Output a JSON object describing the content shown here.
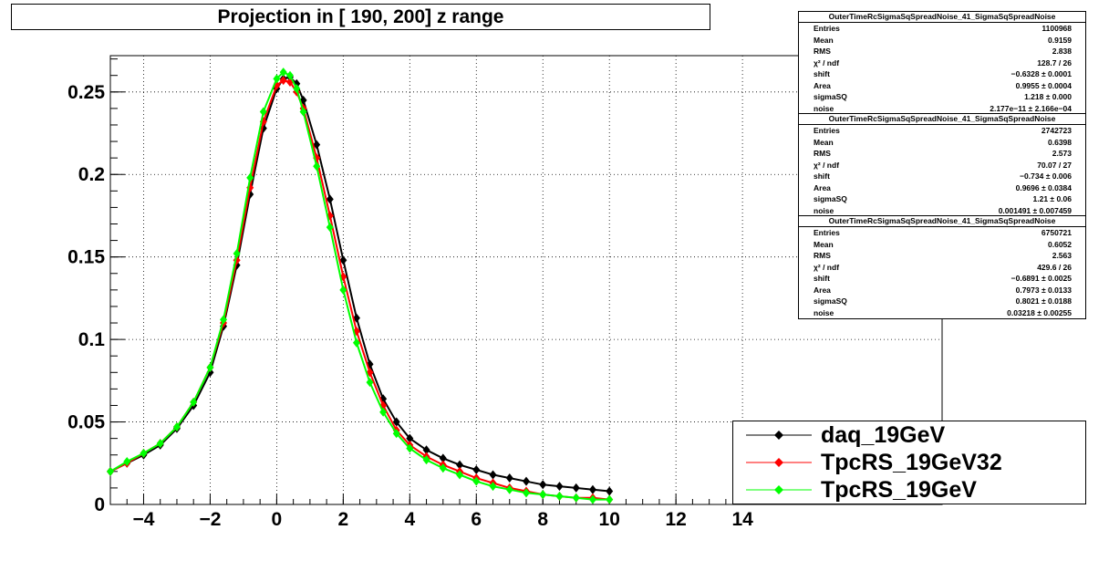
{
  "chart_data": {
    "type": "scatter",
    "title": "Projection in [ 190, 200] z range",
    "xlim": [
      -5,
      20
    ],
    "ylim": [
      0,
      0.272
    ],
    "x_ticks": [
      -4,
      -2,
      0,
      2,
      4,
      6,
      8,
      10,
      12,
      14
    ],
    "x_tick_labels": [
      "−4",
      "−2",
      "0",
      "2",
      "4",
      "6",
      "8",
      "10",
      "12",
      "14"
    ],
    "y_ticks": [
      0,
      0.05,
      0.1,
      0.15,
      0.2,
      0.25
    ],
    "y_tick_labels": [
      "0",
      "0.05",
      "0.1",
      "0.15",
      "0.2",
      "0.25"
    ],
    "grid": true,
    "legend_position": "bottom-right",
    "series": [
      {
        "name": "daq_19GeV",
        "color": "#000000",
        "points": [
          [
            -5,
            0.02
          ],
          [
            -4.5,
            0.025
          ],
          [
            -4,
            0.03
          ],
          [
            -3.5,
            0.036
          ],
          [
            -3,
            0.046
          ],
          [
            -2.5,
            0.06
          ],
          [
            -2,
            0.08
          ],
          [
            -1.6,
            0.108
          ],
          [
            -1.2,
            0.145
          ],
          [
            -0.8,
            0.188
          ],
          [
            -0.4,
            0.228
          ],
          [
            0,
            0.252
          ],
          [
            0.2,
            0.258
          ],
          [
            0.4,
            0.259
          ],
          [
            0.6,
            0.255
          ],
          [
            0.8,
            0.245
          ],
          [
            1.2,
            0.218
          ],
          [
            1.6,
            0.185
          ],
          [
            2,
            0.148
          ],
          [
            2.4,
            0.113
          ],
          [
            2.8,
            0.085
          ],
          [
            3.2,
            0.064
          ],
          [
            3.6,
            0.05
          ],
          [
            4,
            0.04
          ],
          [
            4.5,
            0.033
          ],
          [
            5,
            0.028
          ],
          [
            5.5,
            0.024
          ],
          [
            6,
            0.021
          ],
          [
            6.5,
            0.018
          ],
          [
            7,
            0.016
          ],
          [
            7.5,
            0.014
          ],
          [
            8,
            0.012
          ],
          [
            8.5,
            0.011
          ],
          [
            9,
            0.01
          ],
          [
            9.5,
            0.009
          ],
          [
            10,
            0.008
          ]
        ],
        "fit": {
          "shift": -0.6328,
          "sigmaSQ": 1.218,
          "area": 0.9955,
          "noise": 0.0
        }
      },
      {
        "name": "TpcRS_19GeV32",
        "color": "#ff0000",
        "points": [
          [
            -5,
            0.02
          ],
          [
            -4.5,
            0.025
          ],
          [
            -4,
            0.031
          ],
          [
            -3.5,
            0.037
          ],
          [
            -3,
            0.047
          ],
          [
            -2.5,
            0.062
          ],
          [
            -2,
            0.083
          ],
          [
            -1.6,
            0.11
          ],
          [
            -1.2,
            0.148
          ],
          [
            -0.8,
            0.192
          ],
          [
            -0.4,
            0.232
          ],
          [
            0,
            0.254
          ],
          [
            0.2,
            0.257
          ],
          [
            0.4,
            0.256
          ],
          [
            0.6,
            0.25
          ],
          [
            0.8,
            0.24
          ],
          [
            1.2,
            0.21
          ],
          [
            1.6,
            0.175
          ],
          [
            2,
            0.138
          ],
          [
            2.4,
            0.105
          ],
          [
            2.8,
            0.08
          ],
          [
            3.2,
            0.06
          ],
          [
            3.6,
            0.045
          ],
          [
            4,
            0.036
          ],
          [
            4.5,
            0.029
          ],
          [
            5,
            0.024
          ],
          [
            5.5,
            0.02
          ],
          [
            6,
            0.016
          ],
          [
            6.5,
            0.013
          ],
          [
            7,
            0.01
          ],
          [
            7.5,
            0.008
          ],
          [
            8,
            0.006
          ],
          [
            8.5,
            0.005
          ],
          [
            9,
            0.004
          ],
          [
            9.5,
            0.004
          ],
          [
            10,
            0.003
          ]
        ],
        "fit": {
          "shift": -0.734,
          "sigmaSQ": 1.21,
          "area": 0.9696,
          "noise": 0.001491
        }
      },
      {
        "name": "TpcRS_19GeV",
        "color": "#00ff00",
        "points": [
          [
            -5,
            0.02
          ],
          [
            -4.5,
            0.026
          ],
          [
            -4,
            0.031
          ],
          [
            -3.5,
            0.037
          ],
          [
            -3,
            0.047
          ],
          [
            -2.5,
            0.062
          ],
          [
            -2,
            0.083
          ],
          [
            -1.6,
            0.112
          ],
          [
            -1.2,
            0.152
          ],
          [
            -0.8,
            0.198
          ],
          [
            -0.4,
            0.238
          ],
          [
            0,
            0.258
          ],
          [
            0.2,
            0.262
          ],
          [
            0.4,
            0.26
          ],
          [
            0.6,
            0.252
          ],
          [
            0.8,
            0.238
          ],
          [
            1.2,
            0.205
          ],
          [
            1.6,
            0.168
          ],
          [
            2,
            0.13
          ],
          [
            2.4,
            0.098
          ],
          [
            2.8,
            0.074
          ],
          [
            3.2,
            0.056
          ],
          [
            3.6,
            0.043
          ],
          [
            4,
            0.034
          ],
          [
            4.5,
            0.027
          ],
          [
            5,
            0.022
          ],
          [
            5.5,
            0.018
          ],
          [
            6,
            0.014
          ],
          [
            6.5,
            0.011
          ],
          [
            7,
            0.009
          ],
          [
            7.5,
            0.007
          ],
          [
            8,
            0.006
          ],
          [
            8.5,
            0.005
          ],
          [
            9,
            0.004
          ],
          [
            9.5,
            0.003
          ],
          [
            10,
            0.003
          ]
        ],
        "fit": {
          "shift": -0.6891,
          "sigmaSQ": 0.8021,
          "area": 0.7973,
          "noise": 0.03218
        }
      }
    ]
  },
  "stats_boxes": [
    {
      "header": "OuterTimeRcSigmaSqSpreadNoise_41_SigmaSqSpreadNoise",
      "rows": [
        {
          "key": "Entries",
          "value": "1100968"
        },
        {
          "key": "Mean",
          "value": "0.9159"
        },
        {
          "key": "RMS",
          "value": "2.838"
        },
        {
          "key": "χ² / ndf",
          "value": "128.7 / 26"
        },
        {
          "key": "shift",
          "value": "−0.6328 ± 0.0001"
        },
        {
          "key": "Area",
          "value": "0.9955 ± 0.0004"
        },
        {
          "key": "sigmaSQ",
          "value": "1.218 ± 0.000"
        },
        {
          "key": "noise",
          "value": "2.177e−11 ± 2.166e−04"
        }
      ]
    },
    {
      "header": "OuterTimeRcSigmaSqSpreadNoise_41_SigmaSqSpreadNoise",
      "rows": [
        {
          "key": "Entries",
          "value": "2742723"
        },
        {
          "key": "Mean",
          "value": "0.6398"
        },
        {
          "key": "RMS",
          "value": "2.573"
        },
        {
          "key": "χ² / ndf",
          "value": "70.07 / 27"
        },
        {
          "key": "shift",
          "value": "−0.734 ± 0.006"
        },
        {
          "key": "Area",
          "value": "0.9696 ± 0.0384"
        },
        {
          "key": "sigmaSQ",
          "value": "1.21 ± 0.06"
        },
        {
          "key": "noise",
          "value": "0.001491 ± 0.007459"
        }
      ]
    },
    {
      "header": "OuterTimeRcSigmaSqSpreadNoise_41_SigmaSqSpreadNoise",
      "rows": [
        {
          "key": "Entries",
          "value": "6750721"
        },
        {
          "key": "Mean",
          "value": "0.6052"
        },
        {
          "key": "RMS",
          "value": "2.563"
        },
        {
          "key": "χ² / ndf",
          "value": "429.6 / 26"
        },
        {
          "key": "shift",
          "value": "−0.6891 ± 0.0025"
        },
        {
          "key": "Area",
          "value": "0.7973 ± 0.0133"
        },
        {
          "key": "sigmaSQ",
          "value": "0.8021 ± 0.0188"
        },
        {
          "key": "noise",
          "value": "0.03218 ± 0.00255"
        }
      ]
    }
  ]
}
